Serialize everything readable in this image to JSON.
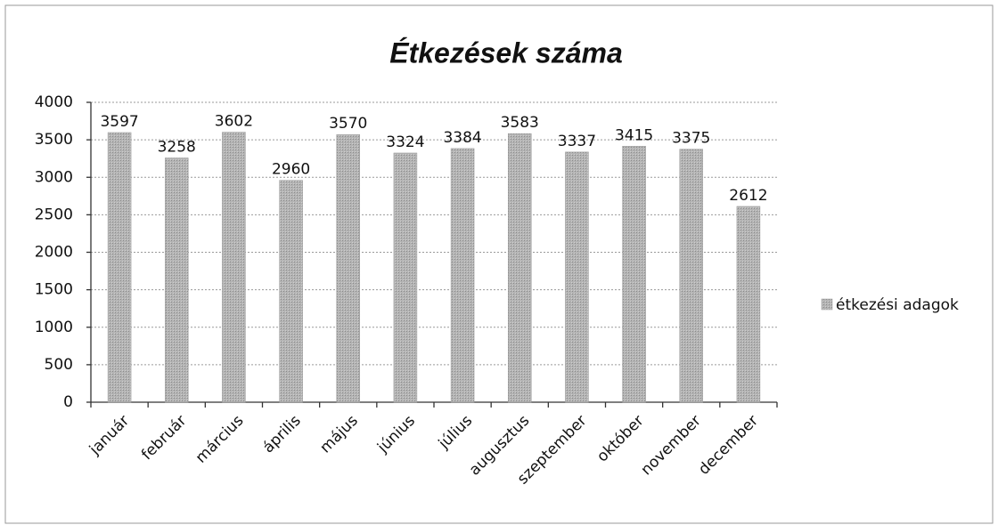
{
  "chart_data": {
    "type": "bar",
    "title": "Étkezések száma",
    "categories": [
      "január",
      "február",
      "március",
      "április",
      "május",
      "június",
      "július",
      "augusztus",
      "szeptember",
      "október",
      "november",
      "december"
    ],
    "series": [
      {
        "name": "étkezési adagok",
        "color": "#a9a9a9",
        "values": [
          3597,
          3258,
          3602,
          2960,
          3570,
          3324,
          3384,
          3583,
          3337,
          3415,
          3375,
          2612
        ]
      }
    ],
    "ylim": [
      0,
      4000
    ],
    "yticks": [
      0,
      500,
      1000,
      1500,
      2000,
      2500,
      3000,
      3500,
      4000
    ],
    "grid": true,
    "legend": "right"
  }
}
